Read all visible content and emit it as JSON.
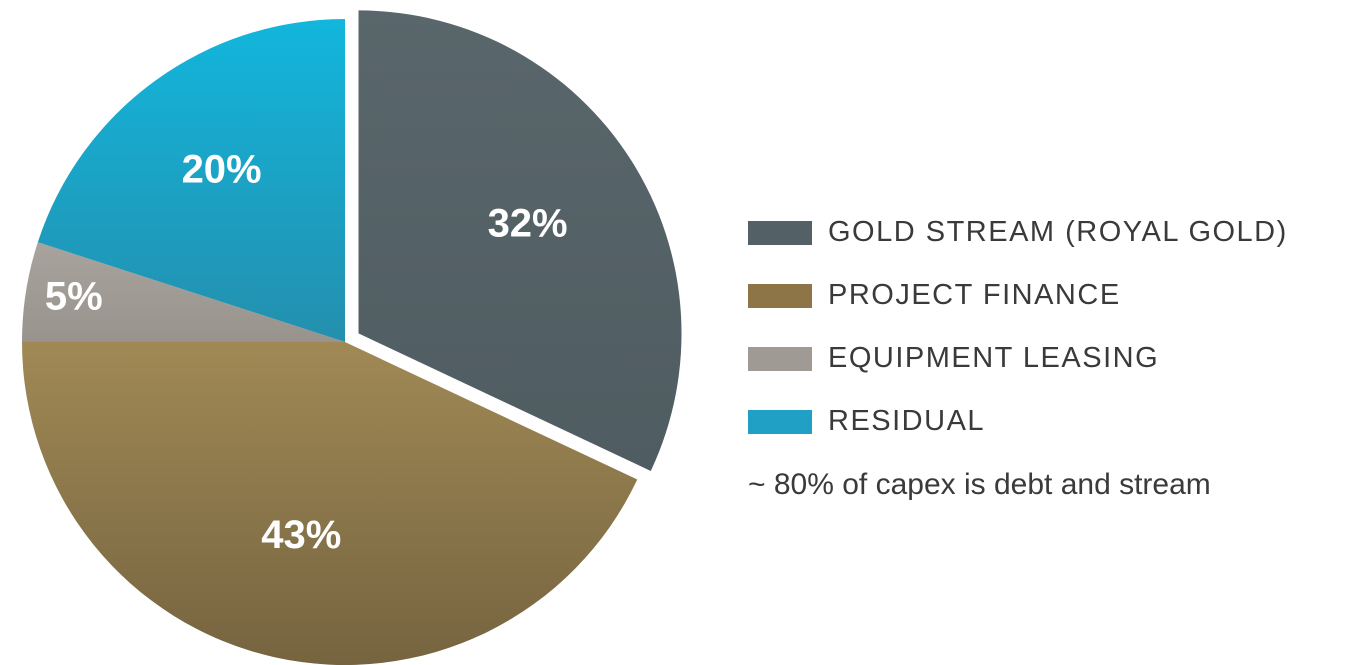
{
  "chart_data": {
    "type": "pie",
    "slices": [
      {
        "label": "GOLD STREAM (ROYAL GOLD)",
        "value": 32,
        "display": "32%",
        "color": "#536166",
        "exploded": true
      },
      {
        "label": "PROJECT FINANCE",
        "value": 43,
        "display": "43%",
        "color": "#8d7547"
      },
      {
        "label": "EQUIPMENT LEASING",
        "value": 5,
        "display": "5%",
        "color": "#a09a94"
      },
      {
        "label": "RESIDUAL",
        "value": 20,
        "display": "20%",
        "color": "#1fa0c4"
      }
    ],
    "legend_position": "right",
    "annotation": "~ 80% of capex is debt and stream"
  }
}
